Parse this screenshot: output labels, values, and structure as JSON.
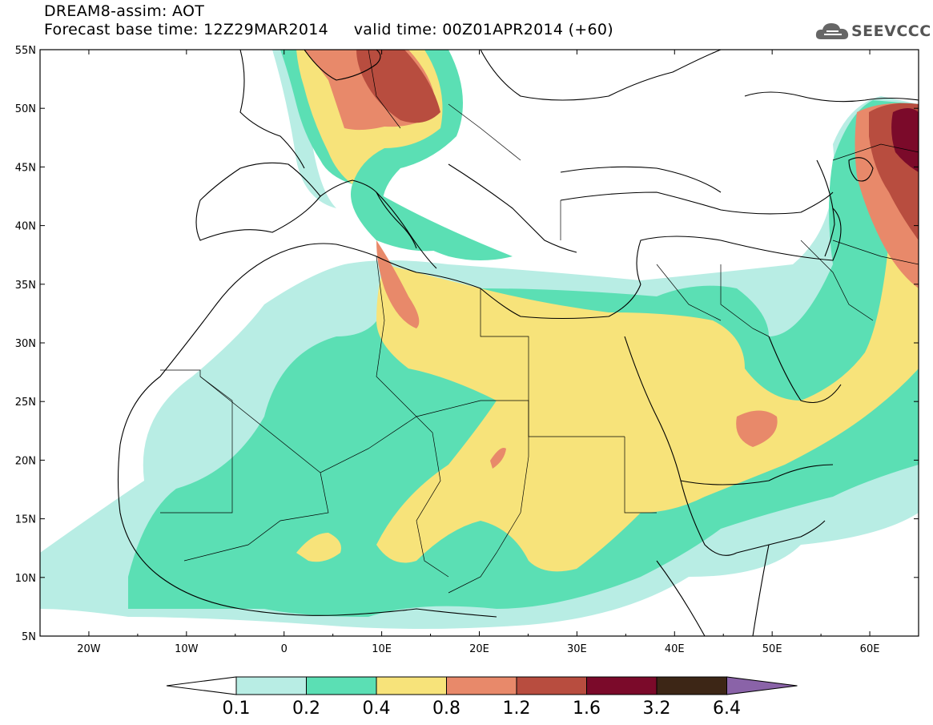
{
  "header": {
    "title_line1": "DREAM8-assim: AOT",
    "base_label": "Forecast base time: 12Z29MAR2014",
    "valid_label": "valid time: 00Z01APR2014 (+60)",
    "logo_text": "SEEVCCC",
    "logo_icon": "cloud-icon"
  },
  "map": {
    "projection": "lat-lon",
    "lon_range": [
      -25,
      65
    ],
    "lat_range": [
      5,
      55
    ],
    "lon_ticks": [
      "20W",
      "10W",
      "0",
      "10E",
      "20E",
      "30E",
      "40E",
      "50E",
      "60E"
    ],
    "lat_ticks": [
      "55N",
      "50N",
      "45N",
      "40N",
      "35N",
      "30N",
      "25N",
      "20N",
      "15N",
      "10N",
      "5N"
    ]
  },
  "colorbar": {
    "labels": [
      "0.1",
      "0.2",
      "0.4",
      "0.8",
      "1.2",
      "1.6",
      "3.2",
      "6.4"
    ],
    "colors": [
      "#ffffff",
      "#b8ede4",
      "#5bdfb4",
      "#f7e37a",
      "#e8896a",
      "#b84d3f",
      "#7b0a2a",
      "#3d2616",
      "#8a63a8"
    ]
  }
}
